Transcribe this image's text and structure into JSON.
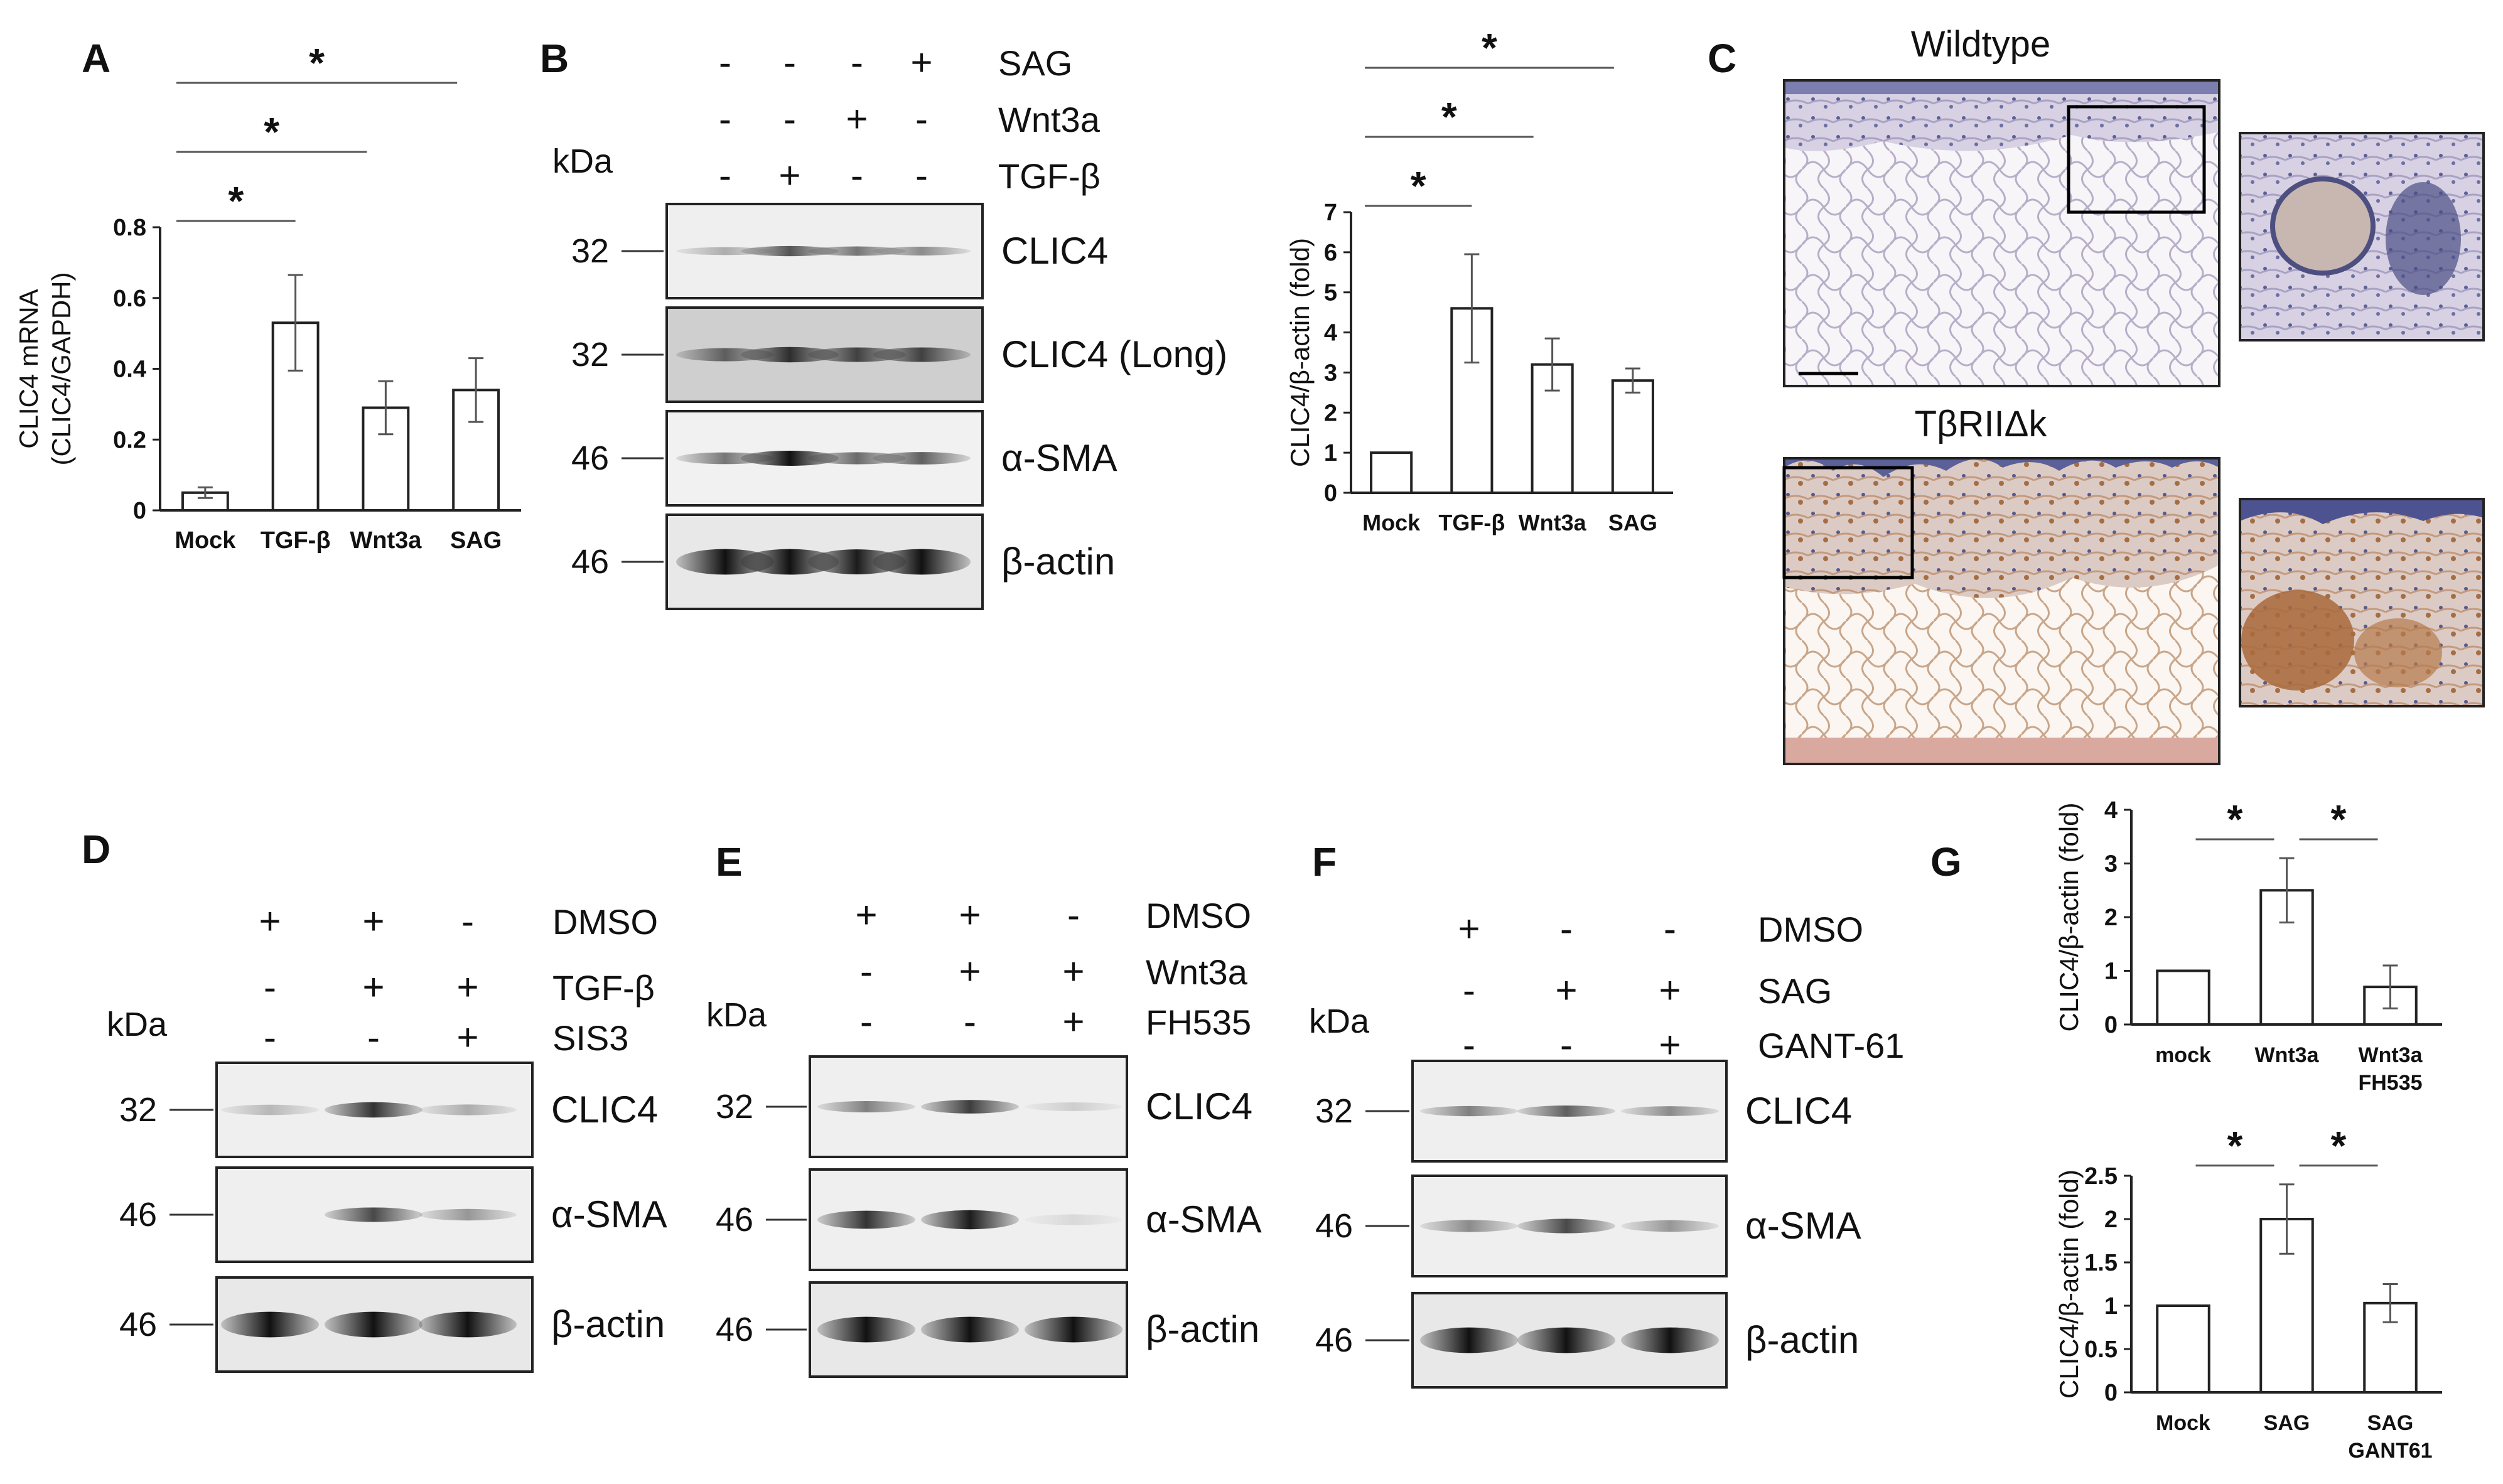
{
  "panels": {
    "A": {
      "label": "A"
    },
    "B": {
      "label": "B",
      "treatments": [
        [
          "-",
          "-",
          "-",
          "+"
        ],
        [
          "-",
          "-",
          "+",
          "-"
        ],
        [
          "-",
          "+",
          "-",
          "-"
        ]
      ],
      "treatment_names": [
        "SAG",
        "Wnt3a",
        "TGF-β"
      ],
      "kda": "kDa",
      "blots": [
        {
          "mw": "32",
          "name": "CLIC4"
        },
        {
          "mw": "32",
          "name": "CLIC4 (Long)"
        },
        {
          "mw": "46",
          "name": "α-SMA"
        },
        {
          "mw": "46",
          "name": "β-actin"
        }
      ]
    },
    "C": {
      "label": "C",
      "titles": [
        "Wildtype",
        "TβRIIΔk"
      ]
    },
    "D": {
      "label": "D",
      "treatments": [
        [
          "+",
          "+",
          "-"
        ],
        [
          "-",
          "+",
          "+"
        ],
        [
          "-",
          "-",
          "+"
        ]
      ],
      "treatment_names": [
        "DMSO",
        "TGF-β",
        "SIS3"
      ],
      "kda": "kDa",
      "blots": [
        {
          "mw": "32",
          "name": "CLIC4"
        },
        {
          "mw": "46",
          "name": "α-SMA"
        },
        {
          "mw": "46",
          "name": "β-actin"
        }
      ]
    },
    "E": {
      "label": "E",
      "treatments": [
        [
          "+",
          "+",
          "-"
        ],
        [
          "-",
          "+",
          "+"
        ],
        [
          "-",
          "-",
          "+"
        ]
      ],
      "treatment_names": [
        "DMSO",
        "Wnt3a",
        "FH535"
      ],
      "kda": "kDa",
      "blots": [
        {
          "mw": "32",
          "name": "CLIC4"
        },
        {
          "mw": "46",
          "name": "α-SMA"
        },
        {
          "mw": "46",
          "name": "β-actin"
        }
      ]
    },
    "F": {
      "label": "F",
      "treatments": [
        [
          "+",
          "-",
          "-"
        ],
        [
          "-",
          "+",
          "+"
        ],
        [
          "-",
          "-",
          "+"
        ]
      ],
      "treatment_names": [
        "DMSO",
        "SAG",
        "GANT-61"
      ],
      "kda": "kDa",
      "blots": [
        {
          "mw": "32",
          "name": "CLIC4"
        },
        {
          "mw": "46",
          "name": "α-SMA"
        },
        {
          "mw": "46",
          "name": "β-actin"
        }
      ]
    },
    "G": {
      "label": "G"
    }
  },
  "chart_data": [
    {
      "id": "A",
      "type": "bar",
      "categories": [
        "Mock",
        "TGF-β",
        "Wnt3a",
        "SAG"
      ],
      "values": [
        0.05,
        0.53,
        0.29,
        0.34
      ],
      "errors": [
        0.015,
        0.135,
        0.075,
        0.09
      ],
      "ylabel": "CLIC4 mRNA\n(CLIC4/GAPDH)",
      "ylim": [
        0,
        0.8
      ],
      "yticks": [
        "0",
        "0.2",
        "0.4",
        "0.6",
        "0.8"
      ],
      "significance": [
        [
          "Mock",
          "TGF-β"
        ],
        [
          "Mock",
          "Wnt3a"
        ],
        [
          "Mock",
          "SAG"
        ]
      ],
      "sig_mark": "*"
    },
    {
      "id": "B",
      "type": "bar",
      "categories": [
        "Mock",
        "TGF-β",
        "Wnt3a",
        "SAG"
      ],
      "values": [
        1.0,
        4.6,
        3.2,
        2.8
      ],
      "errors": [
        0,
        1.35,
        0.65,
        0.3
      ],
      "ylabel": "CLIC4/β-actin (fold)",
      "ylim": [
        0,
        7
      ],
      "yticks": [
        "0",
        "1",
        "2",
        "3",
        "4",
        "5",
        "6",
        "7"
      ],
      "significance": [
        [
          "Mock",
          "TGF-β"
        ],
        [
          "Mock",
          "Wnt3a"
        ],
        [
          "Mock",
          "SAG"
        ]
      ],
      "sig_mark": "*"
    },
    {
      "id": "G1",
      "type": "bar",
      "categories": [
        "mock",
        "Wnt3a",
        "Wnt3a FH535"
      ],
      "values": [
        1.0,
        2.5,
        0.7
      ],
      "errors": [
        0,
        0.6,
        0.4
      ],
      "ylabel": "CLIC4/β-actin (fold)",
      "ylim": [
        0,
        4
      ],
      "yticks": [
        "0",
        "1",
        "2",
        "3",
        "4"
      ],
      "significance": [
        [
          "mock",
          "Wnt3a"
        ],
        [
          "Wnt3a",
          "Wnt3a FH535"
        ]
      ],
      "sig_mark": "*"
    },
    {
      "id": "G2",
      "type": "bar",
      "categories": [
        "Mock",
        "SAG",
        "SAG GANT61"
      ],
      "values": [
        1.0,
        2.0,
        1.03
      ],
      "errors": [
        0,
        0.4,
        0.22
      ],
      "ylabel": "CLIC4/β-actin (fold)",
      "ylim": [
        0,
        2.5
      ],
      "yticks": [
        "0",
        "0.5",
        "1",
        "1.5",
        "2",
        "2.5"
      ],
      "significance": [
        [
          "Mock",
          "SAG"
        ],
        [
          "SAG",
          "SAG GANT61"
        ]
      ],
      "sig_mark": "*"
    }
  ]
}
